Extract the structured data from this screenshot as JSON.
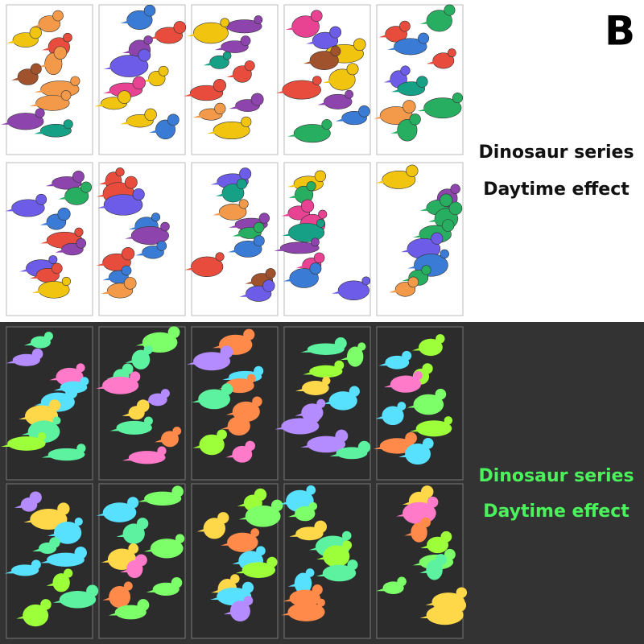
{
  "badge": "B",
  "day": {
    "title": "Dinosaur series",
    "subtitle": "Daytime effect"
  },
  "night": {
    "title": "Dinosaur series",
    "subtitle": "Daytime effect"
  }
}
